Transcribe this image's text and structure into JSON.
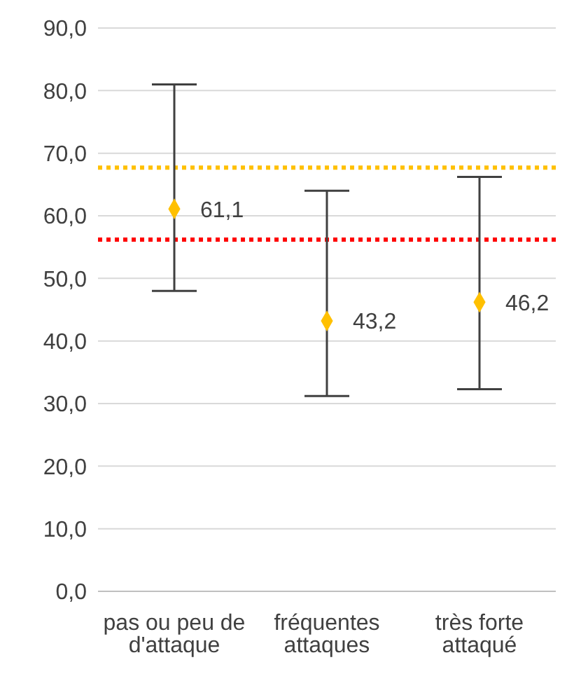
{
  "chart_data": {
    "type": "scatter",
    "categories": [
      "pas ou peu de d'attaque",
      "fréquentes attaques",
      "très forte attaqué"
    ],
    "series": [
      {
        "color": "#ffc000",
        "values": [
          61.1,
          43.2,
          46.2
        ],
        "value_labels": [
          "61,1",
          "43,2",
          "46,2"
        ],
        "errors": [
          [
            48,
            81
          ],
          [
            31.2,
            64
          ],
          [
            32.3,
            66.2
          ]
        ]
      }
    ],
    "ylim": [
      0,
      90
    ],
    "yticks": [
      {
        "value": 0,
        "label": "0,0"
      },
      {
        "value": 10,
        "label": "10,0"
      },
      {
        "value": 20,
        "label": "20,0"
      },
      {
        "value": 30,
        "label": "30,0"
      },
      {
        "value": 40,
        "label": "40,0"
      },
      {
        "value": 50,
        "label": "50,0"
      },
      {
        "value": 60,
        "label": "60,0"
      },
      {
        "value": 70,
        "label": "70,0"
      },
      {
        "value": 80,
        "label": "80,0"
      },
      {
        "value": 90,
        "label": "90,0"
      }
    ],
    "ref_lines": [
      {
        "axis": "y",
        "value": 67.7,
        "color": "#ffc000",
        "line_style": "dotted"
      },
      {
        "axis": "y",
        "value": 56.2,
        "color": "#ff0000",
        "line_style": "dotted"
      }
    ],
    "grid": "y",
    "marker": "diamond",
    "legend": false
  }
}
